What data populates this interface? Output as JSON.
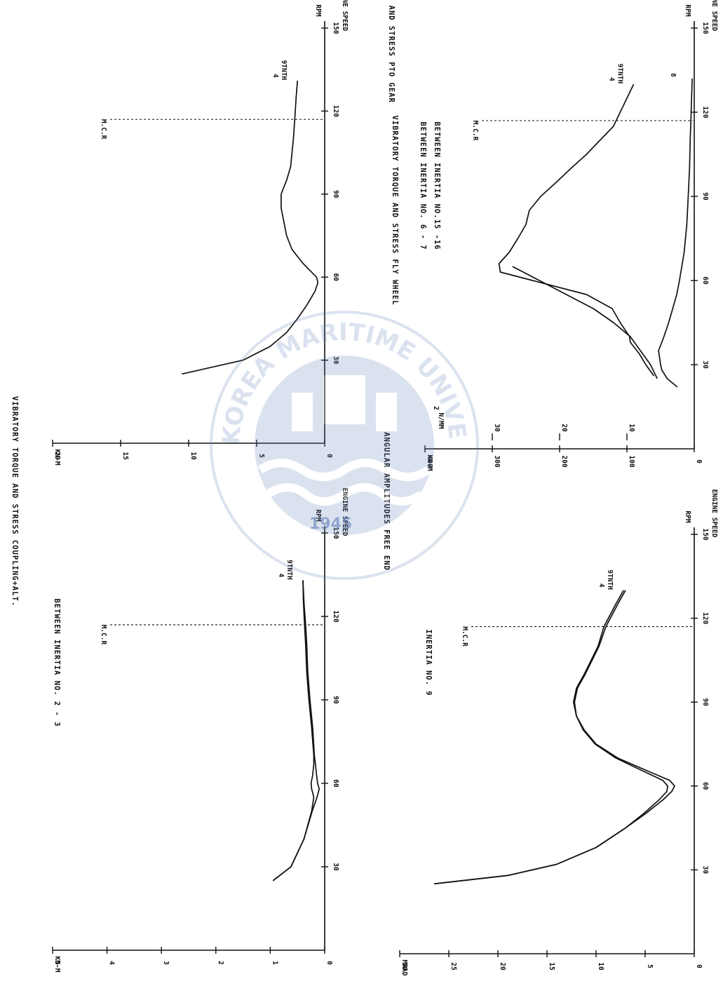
{
  "watermark": {
    "text": "KOREA MARITIME UNIVERSITY",
    "year": "1945",
    "color": "#5f7fb8"
  },
  "chart_data": [
    {
      "type": "line",
      "title": "VIBRATORY TORQUE AND STRESS COUPLING+ALT.",
      "subtitle": "BETWEEN INERTIA NO. 2 - 3",
      "ylabel": "KN-M",
      "xlabel": "ENGINE SPEED",
      "xunit": "RPM",
      "xlim": [
        0,
        150
      ],
      "ylim": [
        0,
        5
      ],
      "xticks": [
        "30",
        "60",
        "90",
        "120",
        "150"
      ],
      "yticks": [
        "0",
        "1",
        "2",
        "3",
        "4",
        "5"
      ],
      "marker": {
        "label": "M.C.R",
        "x": 117
      },
      "order_label": {
        "top": "4",
        "bottom": "9TNTH"
      },
      "series": [
        {
          "x": [
            25,
            30,
            40,
            50,
            55,
            58,
            60,
            63,
            67,
            70,
            80,
            90,
            100,
            110,
            117,
            125,
            133
          ],
          "y": [
            0.95,
            0.62,
            0.38,
            0.24,
            0.2,
            0.24,
            0.25,
            0.22,
            0.2,
            0.2,
            0.24,
            0.29,
            0.33,
            0.35,
            0.37,
            0.39,
            0.4
          ]
        },
        {
          "x": [
            25,
            30,
            40,
            50,
            55,
            58,
            60,
            63,
            67,
            70,
            80,
            90,
            100,
            110,
            117,
            125,
            133
          ],
          "y": [
            0.95,
            0.62,
            0.38,
            0.23,
            0.14,
            0.1,
            0.13,
            0.15,
            0.17,
            0.19,
            0.22,
            0.27,
            0.31,
            0.33,
            0.35,
            0.38,
            0.4
          ]
        }
      ]
    },
    {
      "type": "line",
      "title": "VIBRATORY TORQUE AND STRESS PTO GEAR",
      "subtitle": "BETWEEN INERTIA NO. 6 - 7",
      "ylabel": "KN-M",
      "xlabel": "ENGINE SPEED",
      "xunit": "RPM",
      "xlim": [
        0,
        150
      ],
      "ylim": [
        0,
        20
      ],
      "xticks": [
        "30",
        "60",
        "90",
        "120",
        "150"
      ],
      "yticks": [
        "0",
        "5",
        "10",
        "15",
        "20"
      ],
      "marker": {
        "label": "M.C.R",
        "x": 117
      },
      "order_label": {
        "top": "4",
        "bottom": "9TNTH"
      },
      "series": [
        {
          "x": [
            25,
            30,
            35,
            40,
            45,
            50,
            55,
            58,
            60,
            62,
            65,
            70,
            75,
            80,
            85,
            90,
            95,
            100,
            105,
            110,
            117,
            125,
            131
          ],
          "y": [
            10.5,
            6.0,
            4.0,
            2.8,
            2.0,
            1.3,
            0.7,
            0.5,
            0.6,
            1.0,
            1.6,
            2.4,
            2.8,
            3.0,
            3.2,
            3.2,
            2.8,
            2.5,
            2.4,
            2.3,
            2.2,
            2.1,
            2.0
          ]
        }
      ]
    },
    {
      "type": "line",
      "title": "ANGULAR AMPLITUDES FREE END",
      "subtitle": "INERTIA NO. 9",
      "ylabel": "MRAD",
      "xlabel": "ENGINE SPEED",
      "xunit": "RPM",
      "xlim": [
        0,
        150
      ],
      "ylim": [
        0,
        30
      ],
      "xticks": [
        "30",
        "60",
        "90",
        "120",
        "150"
      ],
      "yticks": [
        "0",
        "5",
        "10",
        "15",
        "20",
        "25",
        "30"
      ],
      "marker": {
        "label": "M.C.R",
        "x": 117
      },
      "order_label": {
        "top": "4",
        "bottom": "9TNTH"
      },
      "series": [
        {
          "x": [
            25,
            28,
            32,
            38,
            45,
            50,
            55,
            58,
            60,
            62,
            65,
            70,
            75,
            80,
            85,
            90,
            95,
            100,
            105,
            110,
            117,
            125,
            130
          ],
          "y": [
            26.5,
            19.0,
            14.0,
            10.0,
            7.0,
            5.0,
            3.2,
            2.3,
            2.0,
            2.5,
            4.5,
            7.8,
            10.0,
            11.2,
            12.0,
            12.3,
            12.0,
            11.2,
            10.5,
            9.8,
            9.2,
            8.0,
            7.2
          ]
        },
        {
          "x": [
            25,
            28,
            32,
            38,
            45,
            50,
            55,
            58,
            60,
            62,
            65,
            70,
            75,
            80,
            85,
            90,
            95,
            100,
            105,
            110,
            117,
            125,
            130
          ],
          "y": [
            26.5,
            19.0,
            14.0,
            10.0,
            7.0,
            5.2,
            3.6,
            2.8,
            2.7,
            3.2,
            5.0,
            8.0,
            10.1,
            11.3,
            12.0,
            12.2,
            11.9,
            11.1,
            10.4,
            9.7,
            9.0,
            7.8,
            7.0
          ]
        }
      ]
    },
    {
      "type": "line",
      "title": "VIBRATORY TORQUE AND STRESS FLY WHEEL",
      "subtitle": "BETWEEN INERTIA NO.15 -16",
      "ylabel": "KN-M",
      "y2label": "N/MM",
      "y2label_exp": "2",
      "xlabel": "ENGINE SPEED",
      "xunit": "RPM",
      "xlim": [
        0,
        150
      ],
      "ylim": [
        0,
        400
      ],
      "y2lim": [
        0,
        40
      ],
      "xticks": [
        "30",
        "60",
        "90",
        "120",
        "150"
      ],
      "yticks": [
        "0",
        "100",
        "200",
        "300",
        "400"
      ],
      "y2ticks": [
        "10",
        "20",
        "30"
      ],
      "marker": {
        "label": "M.C.R",
        "x": 117
      },
      "order_label": {
        "top": "4",
        "bottom": "9TNTH"
      },
      "order_label_2": "8",
      "series": [
        {
          "x": [
            26,
            30,
            34,
            38,
            40,
            45,
            50,
            55,
            60,
            63,
            66,
            70,
            75,
            80,
            85,
            90,
            95,
            100,
            105,
            110,
            115,
            120,
            125,
            130
          ],
          "y": [
            60,
            72,
            82,
            95,
            96,
            110,
            122,
            160,
            240,
            288,
            290,
            275,
            262,
            250,
            245,
            228,
            205,
            183,
            160,
            140,
            120,
            110,
            100,
            90
          ]
        },
        {
          "x": [
            25,
            30,
            35,
            40,
            45,
            50,
            55,
            60,
            65
          ],
          "y": [
            55,
            65,
            80,
            95,
            120,
            150,
            190,
            230,
            270
          ]
        },
        {
          "x": [
            22,
            25,
            28,
            30,
            35,
            40,
            45,
            50,
            55,
            60,
            70,
            80,
            90,
            100,
            110,
            117,
            125,
            132
          ],
          "y": [
            25,
            40,
            48,
            50,
            53,
            45,
            38,
            32,
            26,
            22,
            15,
            11,
            9,
            7,
            6,
            5,
            4,
            3
          ]
        }
      ]
    }
  ]
}
